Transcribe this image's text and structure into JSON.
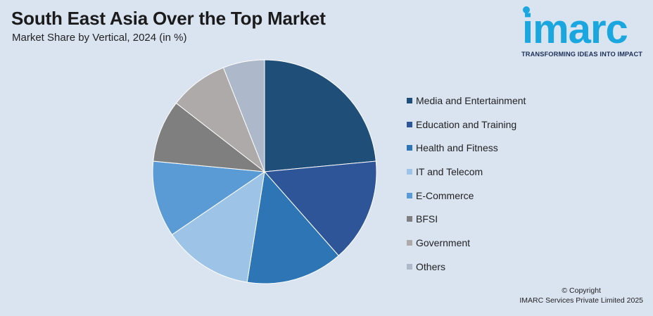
{
  "header": {
    "title": "South East Asia Over the Top Market",
    "subtitle": "Market Share by Vertical, 2024 (in %)"
  },
  "logo": {
    "word": "imarc",
    "tagline": "TRANSFORMING IDEAS INTO IMPACT",
    "color": "#1aa7e0"
  },
  "chart_data": {
    "type": "pie",
    "categories": [
      "Media and Entertainment",
      "Education and Training",
      "Health and Fitness",
      "IT and Telecom",
      "E-Commerce",
      "BFSI",
      "Government",
      "Others"
    ],
    "values": [
      23.5,
      15.0,
      14.0,
      13.0,
      11.0,
      9.0,
      8.5,
      6.0
    ],
    "colors": [
      "#1f4e79",
      "#2e5597",
      "#2e75b6",
      "#9dc3e6",
      "#5b9bd5",
      "#7f7f7f",
      "#aeaaaa",
      "#adb9ca"
    ],
    "legend_position": "right"
  },
  "footer": {
    "copyright_line1": "© Copyright",
    "copyright_line2": "IMARC Services Private Limited 2025"
  }
}
